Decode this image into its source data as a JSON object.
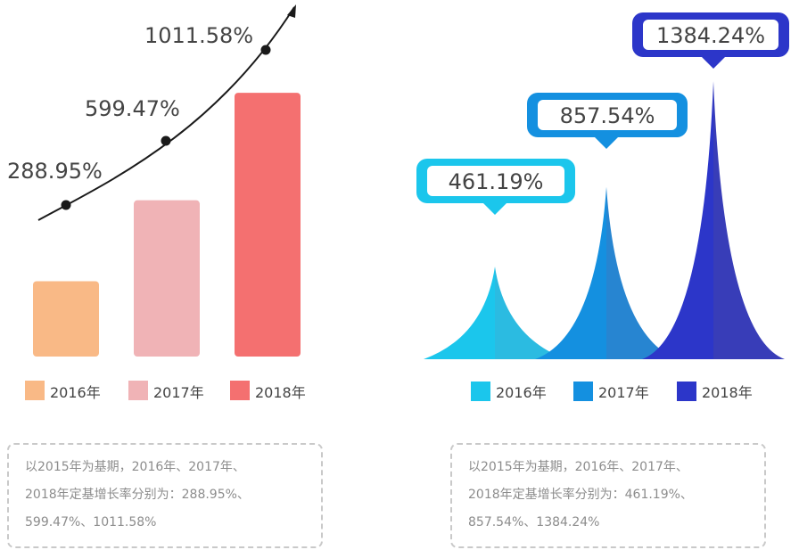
{
  "chart_data": [
    {
      "type": "bar",
      "categories": [
        "2016年",
        "2017年",
        "2018年"
      ],
      "values": [
        288.95,
        599.47,
        1011.58
      ],
      "value_labels": [
        "288.95%",
        "599.47%",
        "1011.58%"
      ],
      "colors": [
        "#f9b986",
        "#f0b3b6",
        "#f47070"
      ],
      "legend": "bottom",
      "trend_line": true,
      "note_lines": [
        "以2015年为基期，2016年、2017年、",
        "2018年定基增长率分别为：288.95%、",
        "599.47%、1011.58%"
      ]
    },
    {
      "type": "area",
      "categories": [
        "2016年",
        "2017年",
        "2018年"
      ],
      "values": [
        461.19,
        857.54,
        1384.24
      ],
      "value_labels": [
        "461.19%",
        "857.54%",
        "1384.24%"
      ],
      "colors": [
        "#1bc6ec",
        "#1490e0",
        "#2c36c9"
      ],
      "legend": "bottom",
      "note_lines": [
        "以2015年为基期，2016年、2017年、",
        "2018年定基增长率分别为：461.19%、",
        "857.54%、1384.24%"
      ]
    }
  ]
}
